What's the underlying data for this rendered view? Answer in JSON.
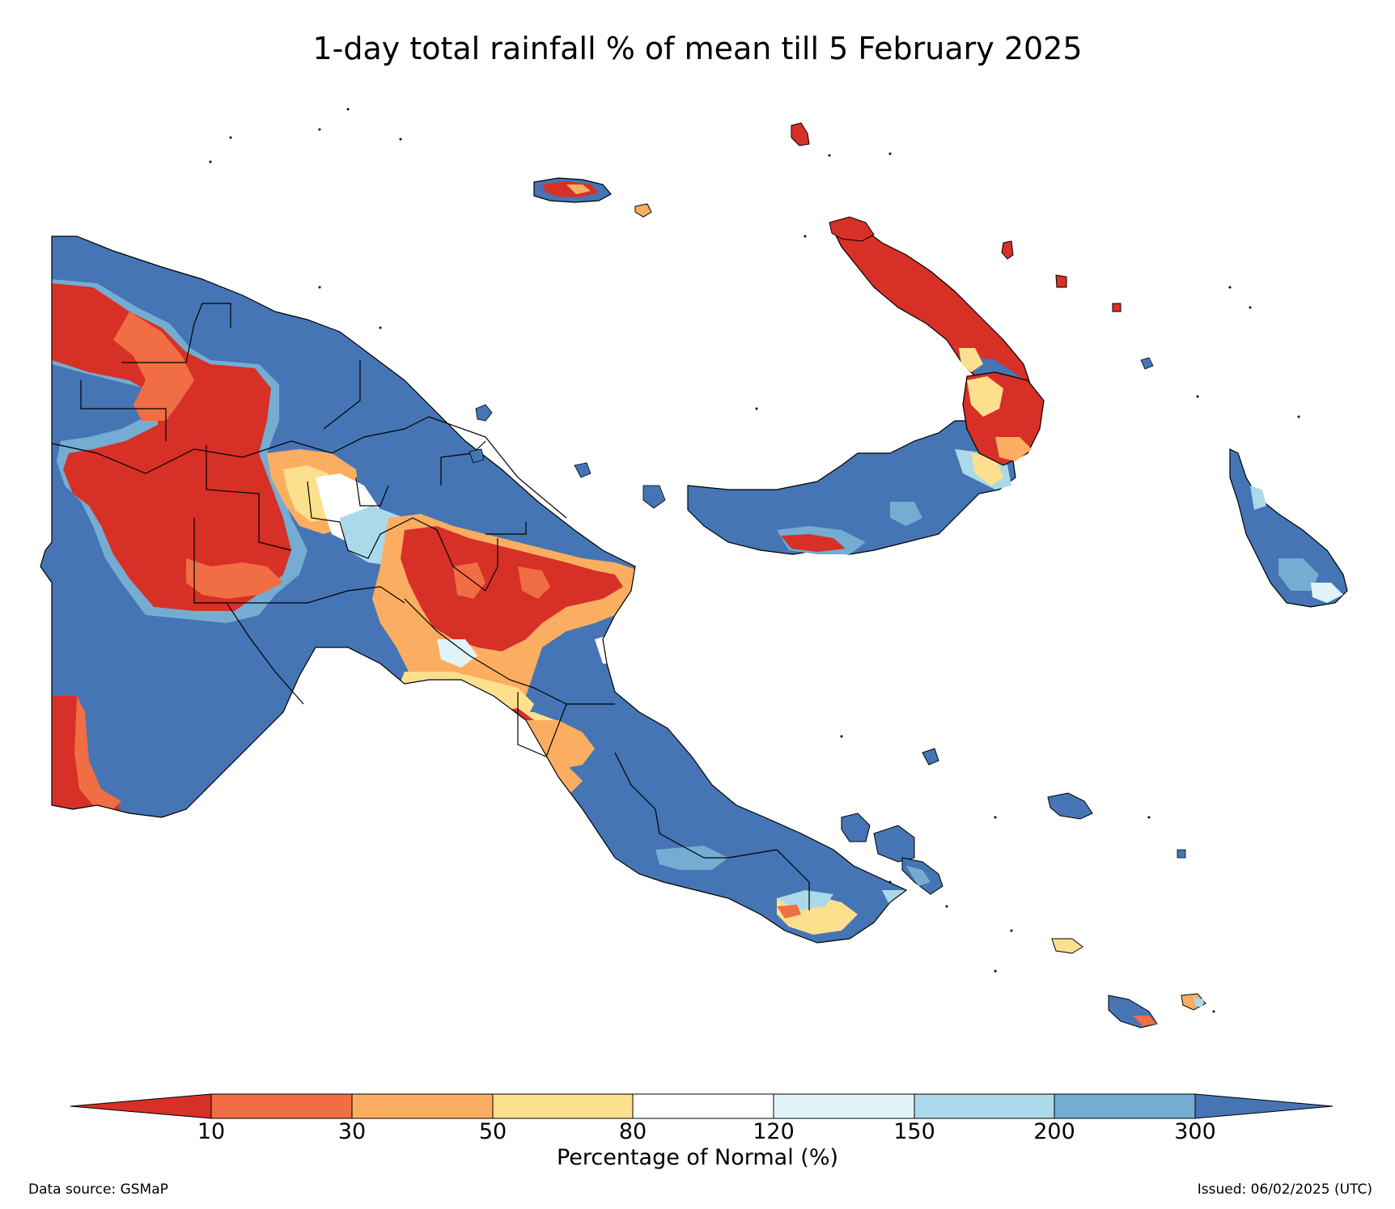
{
  "map": {
    "title": "1-day total rainfall % of mean till 5 February 2025",
    "region": "Papua New Guinea",
    "variable": "1-day total rainfall percentage of mean",
    "land_base_category": "300+"
  },
  "legend": {
    "title": "Percentage of Normal (%)",
    "ticks": [
      "10",
      "30",
      "50",
      "80",
      "120",
      "150",
      "200",
      "300"
    ],
    "categories": [
      {
        "range": "<10",
        "color": "#d73027"
      },
      {
        "range": "10-30",
        "color": "#f16d43"
      },
      {
        "range": "30-50",
        "color": "#fbae61"
      },
      {
        "range": "50-80",
        "color": "#fde08d"
      },
      {
        "range": "80-120",
        "color": "#ffffff"
      },
      {
        "range": "120-150",
        "color": "#e0f3f8"
      },
      {
        "range": "150-200",
        "color": "#abd9e9"
      },
      {
        "range": "200-300",
        "color": "#74add1"
      },
      {
        "range": ">300",
        "color": "#4575b4"
      }
    ]
  },
  "footer": {
    "source": "Data source: GSMaP",
    "issued": "Issued: 06/02/2025 (UTC)"
  }
}
